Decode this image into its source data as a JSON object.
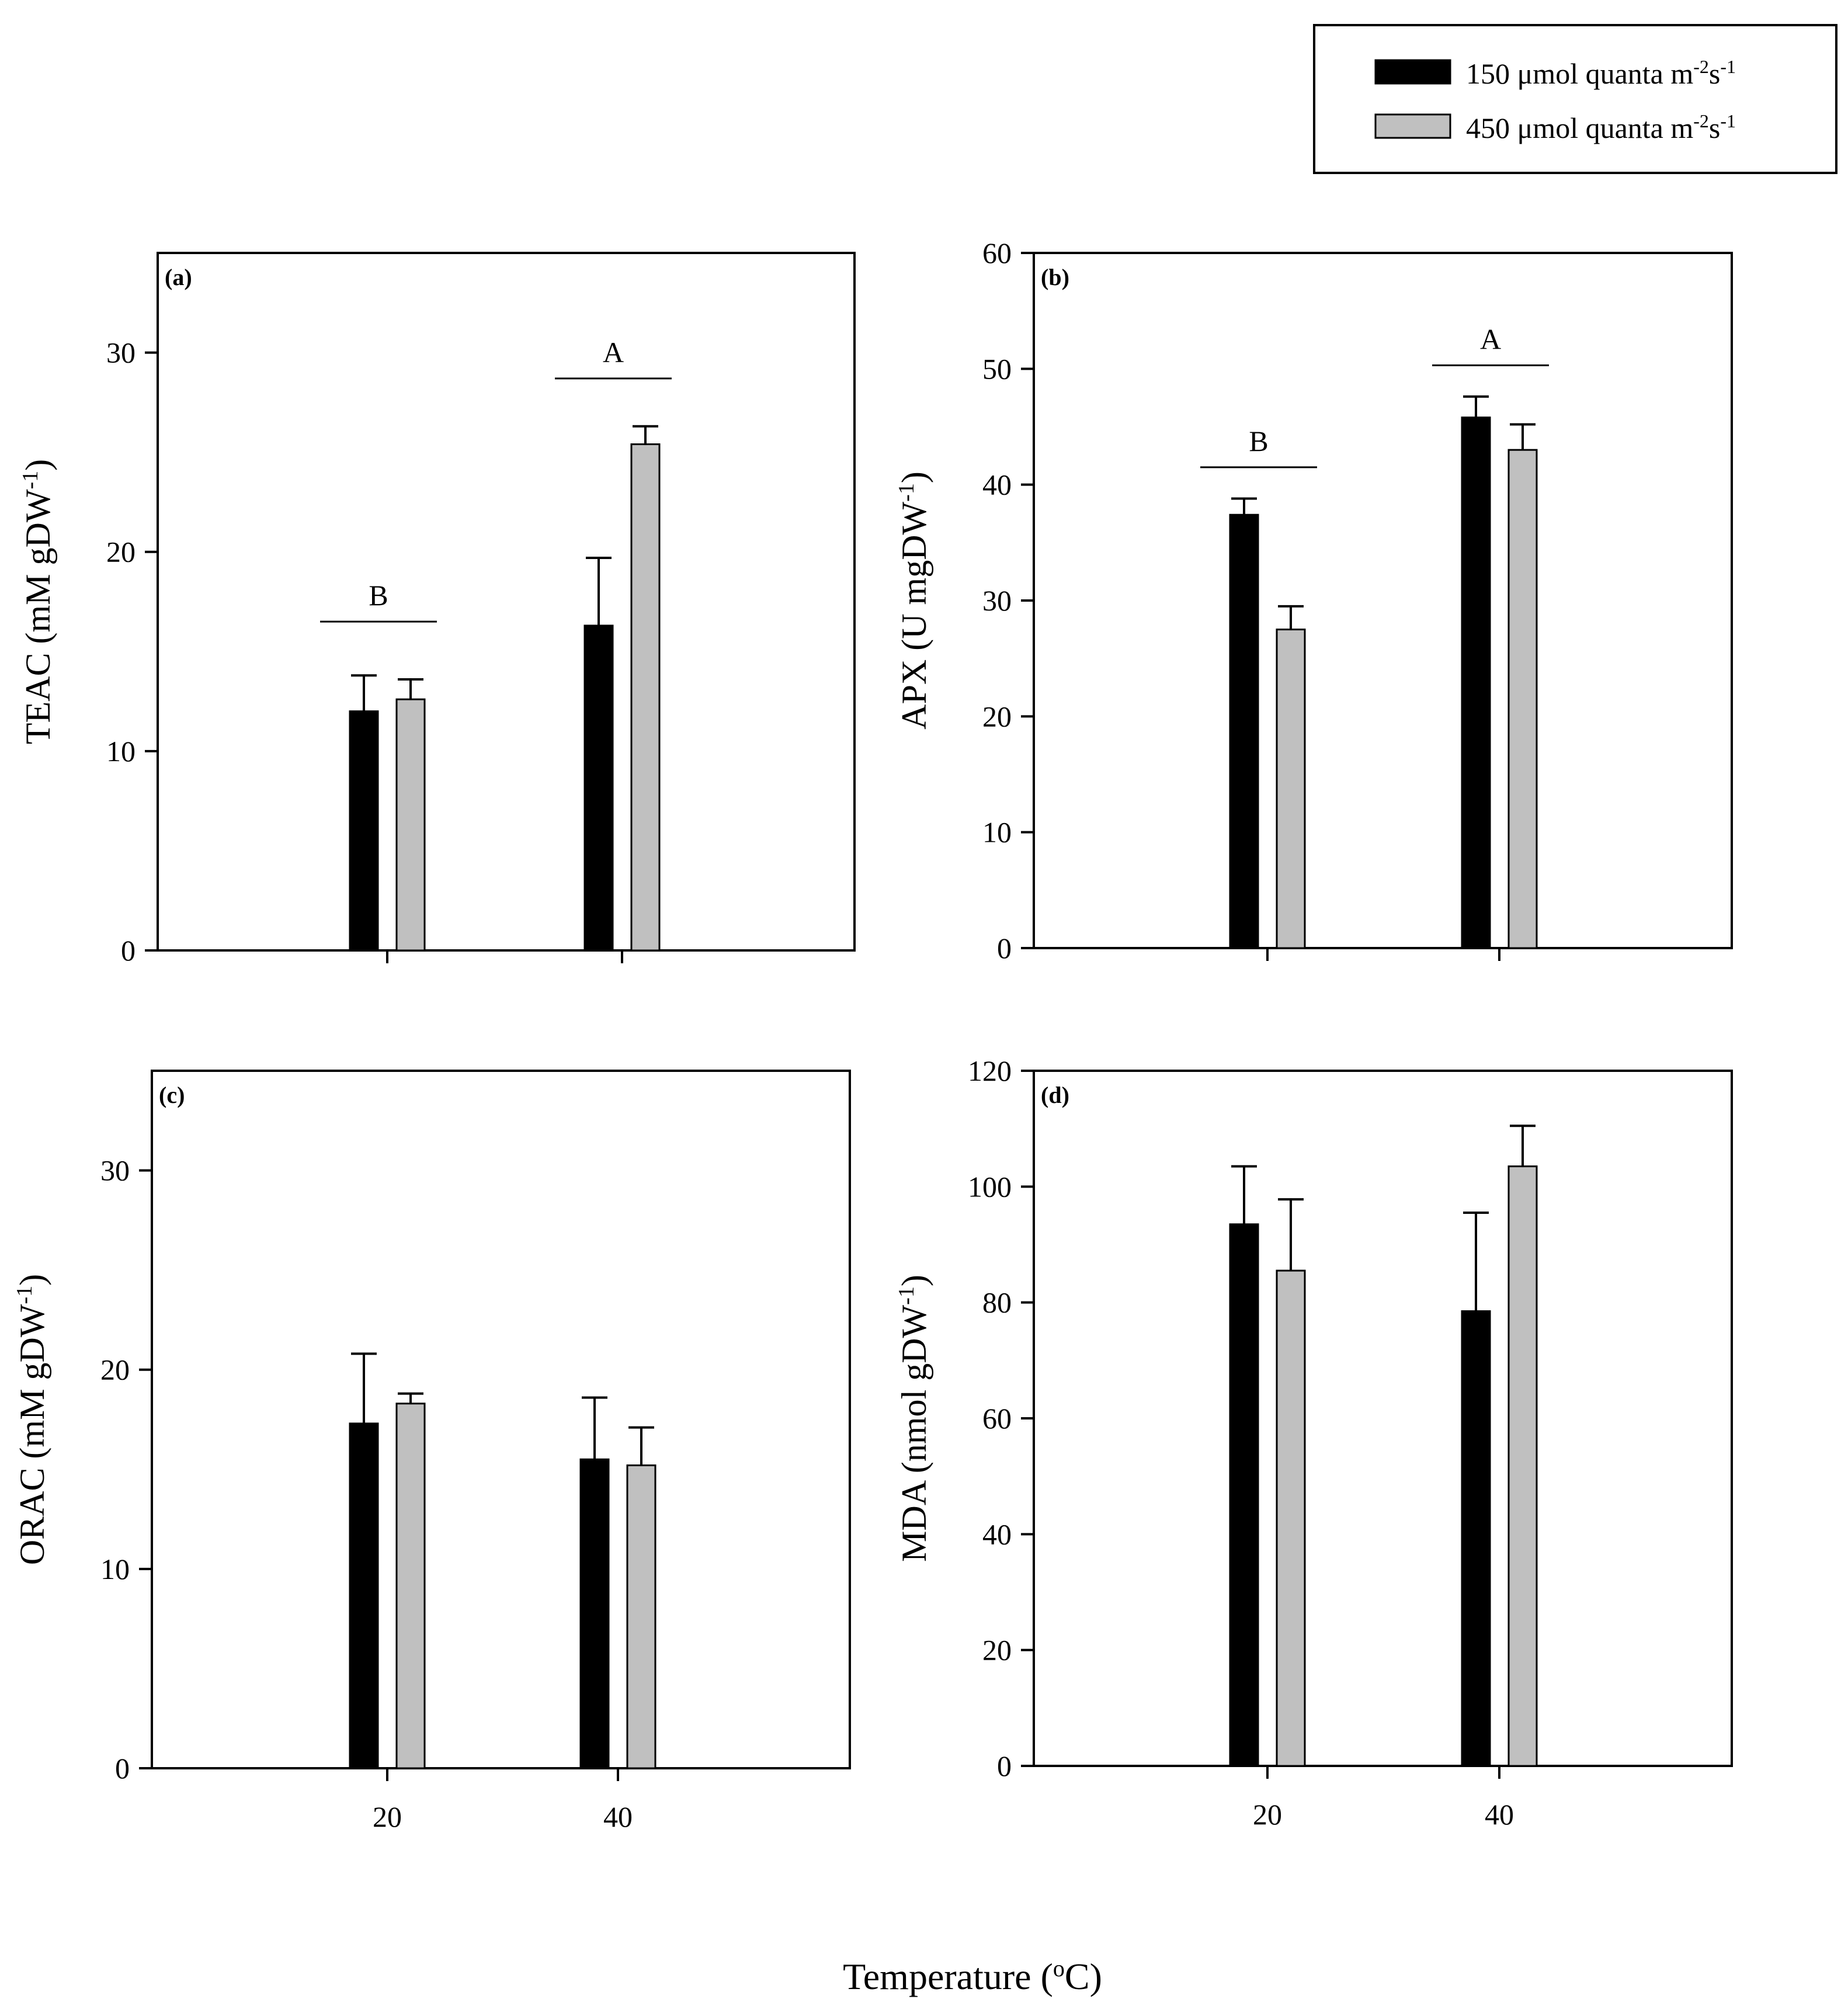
{
  "colors": {
    "series1": "#000000",
    "series2": "#c0c0c0",
    "axis": "#000000"
  },
  "legend": [
    {
      "label": "150 μmol quanta m",
      "sup1": "-2",
      "mid": "s",
      "sup2": "-1"
    },
    {
      "label": "450 μmol quanta m",
      "sup1": "-2",
      "mid": "s",
      "sup2": "-1"
    }
  ],
  "x_title": {
    "text": "Temperature (",
    "sup": "o",
    "tail": "C)"
  },
  "chart_data": [
    {
      "panel": "(a)",
      "type": "bar",
      "ylabel": "TEAC (mM gDW",
      "ylabel_sup": "-1",
      "ylabel_tail": ")",
      "categories": [
        "20",
        "40"
      ],
      "show_xtick_labels": false,
      "ylim": [
        0,
        35
      ],
      "yticks": [
        0,
        10,
        20,
        30
      ],
      "series": [
        {
          "name": "150 μmol quanta m-2s-1",
          "values": [
            12.0,
            16.3
          ],
          "errors": [
            1.8,
            3.4
          ]
        },
        {
          "name": "450 μmol quanta m-2s-1",
          "values": [
            12.6,
            25.4
          ],
          "errors": [
            1.0,
            0.9
          ]
        }
      ],
      "significance": [
        {
          "category_index": 0,
          "label": "B",
          "y": 16.5
        },
        {
          "category_index": 1,
          "label": "A",
          "y": 28.7
        }
      ]
    },
    {
      "panel": "(b)",
      "type": "bar",
      "ylabel": "APX (U mgDW",
      "ylabel_sup": "-1",
      "ylabel_tail": ")",
      "categories": [
        "20",
        "40"
      ],
      "show_xtick_labels": false,
      "ylim": [
        0,
        60
      ],
      "yticks": [
        0,
        10,
        20,
        30,
        40,
        50,
        60
      ],
      "series": [
        {
          "name": "150 μmol quanta m-2s-1",
          "values": [
            37.4,
            45.8
          ],
          "errors": [
            1.4,
            1.8
          ]
        },
        {
          "name": "450 μmol quanta m-2s-1",
          "values": [
            27.5,
            43.0
          ],
          "errors": [
            2.0,
            2.2
          ]
        }
      ],
      "significance": [
        {
          "category_index": 0,
          "label": "B",
          "y": 41.5
        },
        {
          "category_index": 1,
          "label": "A",
          "y": 50.3
        }
      ]
    },
    {
      "panel": "(c)",
      "type": "bar",
      "ylabel": "ORAC (mM gDW",
      "ylabel_sup": "-1",
      "ylabel_tail": ")",
      "categories": [
        "20",
        "40"
      ],
      "show_xtick_labels": true,
      "ylim": [
        0,
        35
      ],
      "yticks": [
        0,
        10,
        20,
        30
      ],
      "series": [
        {
          "name": "150 μmol quanta m-2s-1",
          "values": [
            17.3,
            15.5
          ],
          "errors": [
            3.5,
            3.1
          ]
        },
        {
          "name": "450 μmol quanta m-2s-1",
          "values": [
            18.3,
            15.2
          ],
          "errors": [
            0.5,
            1.9
          ]
        }
      ],
      "significance": []
    },
    {
      "panel": "(d)",
      "type": "bar",
      "ylabel": "MDA (nmol gDW",
      "ylabel_sup": "-1",
      "ylabel_tail": ")",
      "categories": [
        "20",
        "40"
      ],
      "show_xtick_labels": true,
      "ylim": [
        0,
        120
      ],
      "yticks": [
        0,
        20,
        40,
        60,
        80,
        100,
        120
      ],
      "series": [
        {
          "name": "150 μmol quanta m-2s-1",
          "values": [
            93.5,
            78.5
          ],
          "errors": [
            10.0,
            17.0
          ]
        },
        {
          "name": "450 μmol quanta m-2s-1",
          "values": [
            85.5,
            103.5
          ],
          "errors": [
            12.3,
            7.0
          ]
        }
      ],
      "significance": []
    }
  ]
}
